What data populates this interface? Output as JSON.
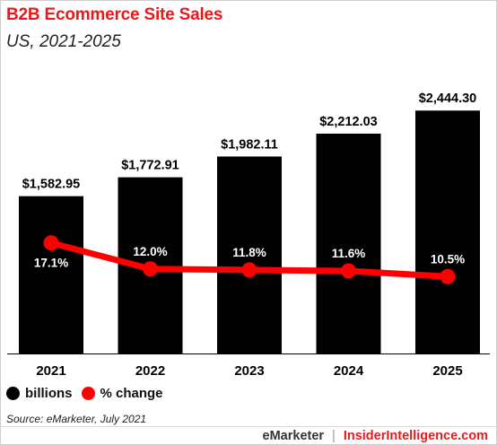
{
  "header": {
    "title": "B2B Ecommerce Site Sales",
    "subtitle": "US, 2021-2025"
  },
  "chart_data": {
    "type": "bar",
    "categories": [
      "2021",
      "2022",
      "2023",
      "2024",
      "2025"
    ],
    "series": [
      {
        "name": "billions",
        "kind": "bar",
        "values": [
          1582.95,
          1772.91,
          1982.11,
          2212.03,
          2444.3
        ],
        "labels": [
          "$1,582.95",
          "$1,772.91",
          "$1,982.11",
          "$2,212.03",
          "$2,444.30"
        ],
        "color": "#000000"
      },
      {
        "name": "% change",
        "kind": "line",
        "values": [
          17.1,
          12.0,
          11.8,
          11.6,
          10.5
        ],
        "labels": [
          "17.1%",
          "12.0%",
          "11.8%",
          "11.6%",
          "10.5%"
        ],
        "color": "#ff0000"
      }
    ],
    "bar_ylim": [
      0,
      2600
    ],
    "line_ylim": [
      -7,
      26
    ],
    "grid": false,
    "legend": "bottom-left"
  },
  "legend": {
    "bars_label": "billions",
    "line_label": "% change"
  },
  "footer": {
    "source": "Source: eMarketer, July 2021",
    "brand_left": "eMarketer",
    "separator": "|",
    "brand_right": "InsiderIntelligence.com"
  },
  "colors": {
    "title": "#e8191c",
    "bars": "#000000",
    "line": "#ff0000"
  }
}
